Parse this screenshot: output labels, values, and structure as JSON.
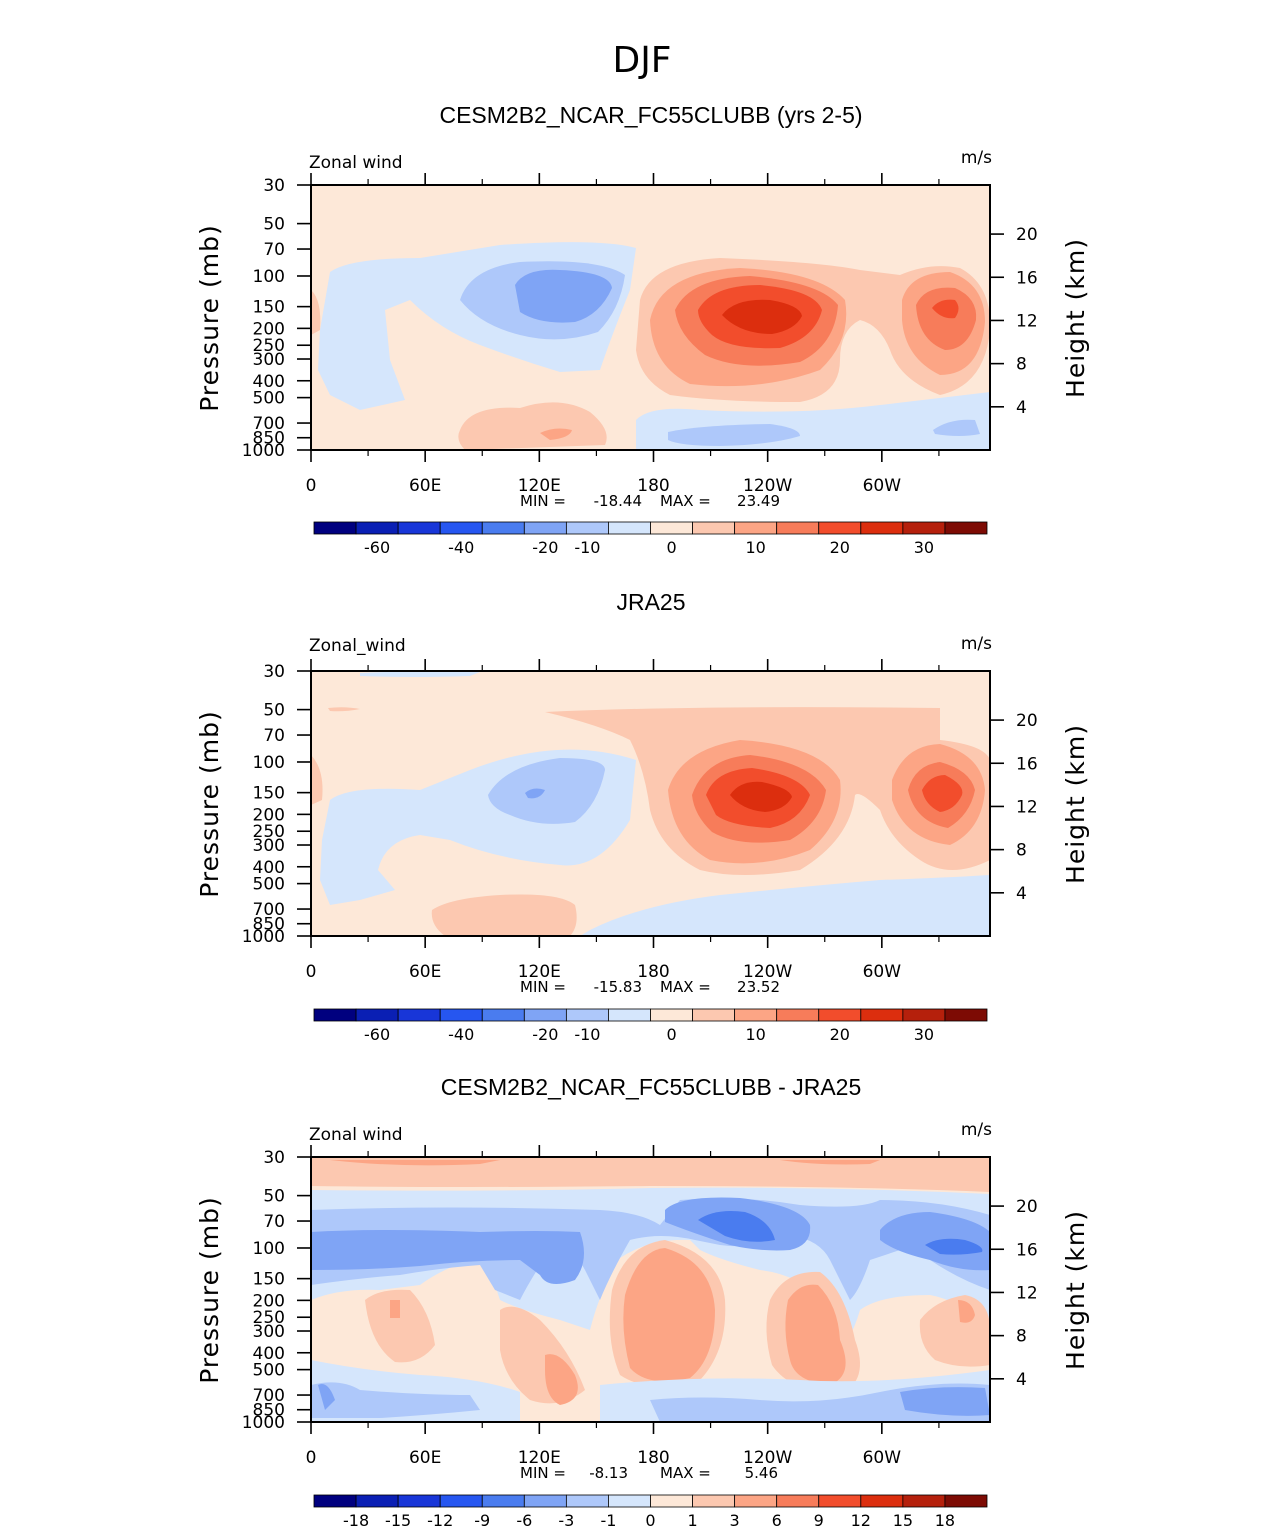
{
  "figure": {
    "title": "DJF",
    "colors": {
      "levels_full": [
        "#00007f",
        "#0a1fb4",
        "#1836d8",
        "#2656f0",
        "#4a7cef",
        "#7fa4f5",
        "#aec8fa",
        "#d5e6fc",
        "#fde8d8",
        "#fcc8b0",
        "#fca585",
        "#f77c5a",
        "#f24d2c",
        "#dc2e0e",
        "#b5200c",
        "#7d0b04"
      ]
    }
  },
  "chart_data": [
    {
      "type": "heatmap",
      "panel_title": "CESM2B2_NCAR_FC55CLUBB (yrs 2-5)",
      "variable_label": "Zonal wind",
      "units_label": "m/s",
      "xlabel": "",
      "ylabel_left": "Pressure (mb)",
      "ylabel_right": "Height (km)",
      "x_tick_labels": [
        "0",
        "60E",
        "120E",
        "180",
        "120W",
        "60W"
      ],
      "y_tick_labels_left": [
        "30",
        "50",
        "70",
        "100",
        "150",
        "200",
        "250",
        "300",
        "400",
        "500",
        "700",
        "850",
        "1000"
      ],
      "y_tick_labels_right": [
        "20",
        "16",
        "12",
        "8",
        "4"
      ],
      "min_label": "MIN =",
      "min_value": "-18.44",
      "max_label": "MAX =",
      "max_value": "23.49",
      "colorbar_labels": [
        "-60",
        "-40",
        "-20",
        "-10",
        "0",
        "10",
        "20",
        "30"
      ],
      "features": [
        {
          "lon": 125,
          "p": 140,
          "value": -14
        },
        {
          "lon": 225,
          "p": 160,
          "value": 23.49
        },
        {
          "lon": 330,
          "p": 160,
          "value": 18
        },
        {
          "lon": 215,
          "p": 850,
          "value": -12
        },
        {
          "lon": 120,
          "p": 800,
          "value": 8
        }
      ]
    },
    {
      "type": "heatmap",
      "panel_title": "JRA25",
      "variable_label": "Zonal_wind",
      "units_label": "m/s",
      "xlabel": "",
      "ylabel_left": "Pressure (mb)",
      "ylabel_right": "Height (km)",
      "x_tick_labels": [
        "0",
        "60E",
        "120E",
        "180",
        "120W",
        "60W"
      ],
      "y_tick_labels_left": [
        "30",
        "50",
        "70",
        "100",
        "150",
        "200",
        "250",
        "300",
        "400",
        "500",
        "700",
        "850",
        "1000"
      ],
      "y_tick_labels_right": [
        "20",
        "16",
        "12",
        "8",
        "4"
      ],
      "min_label": "MIN =",
      "min_value": "-15.83",
      "max_label": "MAX =",
      "max_value": "23.52",
      "colorbar_labels": [
        "-60",
        "-40",
        "-20",
        "-10",
        "0",
        "10",
        "20",
        "30"
      ],
      "features": [
        {
          "lon": 120,
          "p": 150,
          "value": -12
        },
        {
          "lon": 210,
          "p": 150,
          "value": 23.52
        },
        {
          "lon": 330,
          "p": 150,
          "value": 19
        },
        {
          "lon": 100,
          "p": 800,
          "value": 7
        }
      ]
    },
    {
      "type": "heatmap",
      "panel_title": "CESM2B2_NCAR_FC55CLUBB - JRA25",
      "variable_label": "Zonal wind",
      "units_label": "m/s",
      "xlabel": "",
      "ylabel_left": "Pressure (mb)",
      "ylabel_right": "Height (km)",
      "x_tick_labels": [
        "0",
        "60E",
        "120E",
        "180",
        "120W",
        "60W"
      ],
      "y_tick_labels_left": [
        "30",
        "50",
        "70",
        "100",
        "150",
        "200",
        "250",
        "300",
        "400",
        "500",
        "700",
        "850",
        "1000"
      ],
      "y_tick_labels_right": [
        "20",
        "16",
        "12",
        "8",
        "4"
      ],
      "min_label": "MIN =",
      "min_value": "-8.13",
      "max_label": "MAX =",
      "max_value": "5.46",
      "colorbar_labels": [
        "-18",
        "-15",
        "-12",
        "-9",
        "-6",
        "-3",
        "-1",
        "0",
        "1",
        "3",
        "6",
        "9",
        "12",
        "15",
        "18"
      ],
      "features": [
        {
          "lon": 215,
          "p": 80,
          "value": -8.13
        },
        {
          "lon": 340,
          "p": 100,
          "value": -7
        },
        {
          "lon": 180,
          "p": 250,
          "value": 5.46
        },
        {
          "lon": 250,
          "p": 300,
          "value": 4
        }
      ]
    }
  ]
}
